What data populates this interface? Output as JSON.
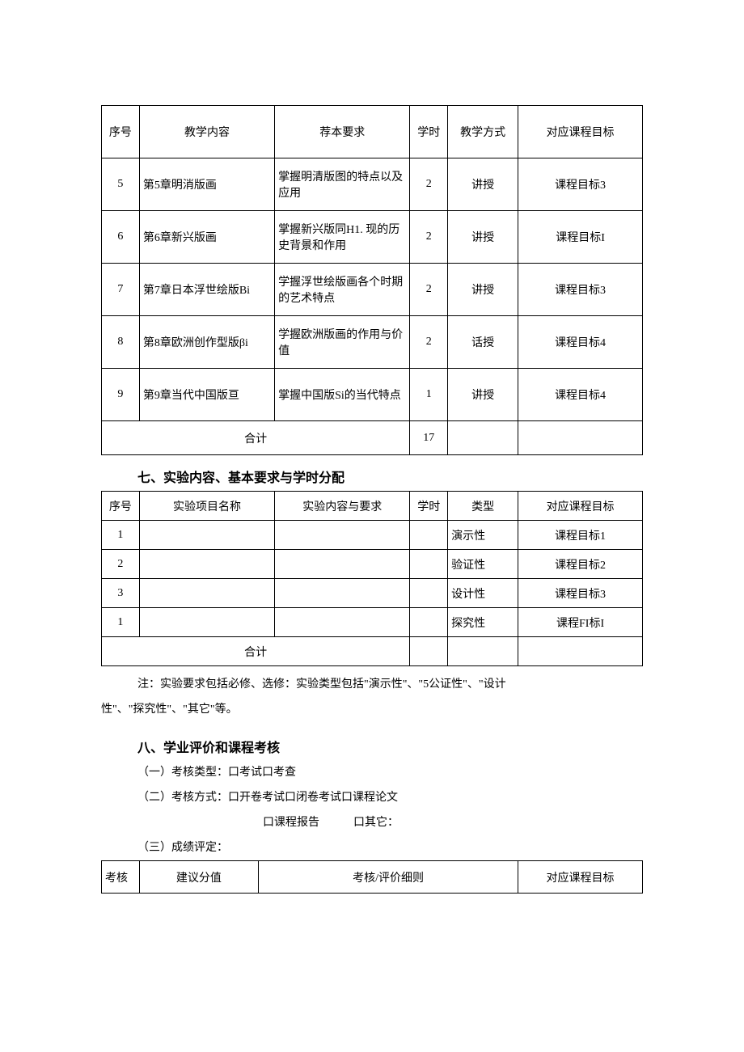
{
  "table1": {
    "headers": [
      "序号",
      "教学内容",
      "荐本要求",
      "学时",
      "教学方式",
      "对应课程目标"
    ],
    "rows": [
      [
        "5",
        "第5章明消版画",
        "掌握明清版图的特点以及应用",
        "2",
        "讲授",
        "课程目标3"
      ],
      [
        "6",
        "第6章新兴版画",
        "掌握新兴版同H1. 现的历史背景和作用",
        "2",
        "讲授",
        "课程目标I"
      ],
      [
        "7",
        "第7章日本浮世绘版Bi",
        "学握浮世绘版画各个时期的艺术特点",
        "2",
        "讲授",
        "课程目标3"
      ],
      [
        "8",
        "第8章欧洲创作型版βi",
        "学握欧洲版画的作用与价值",
        "2",
        "话授",
        "课程目标4"
      ],
      [
        "9",
        "第9章当代中国版亘",
        "掌握中国版Si的当代特点",
        "1",
        "讲授",
        "课程目标4"
      ]
    ],
    "total_label": "合计",
    "total_value": "17"
  },
  "section7_heading": "七、实验内容、基本要求与学时分配",
  "table2": {
    "headers": [
      "序号",
      "实验项目名称",
      "实验内容与要求",
      "学时",
      "类型",
      "对应课程目标"
    ],
    "rows": [
      [
        "1",
        "",
        "",
        "",
        "演示性",
        "课程目标1"
      ],
      [
        "2",
        "",
        "",
        "",
        "验证性",
        "课程目标2"
      ],
      [
        "3",
        "",
        "",
        "",
        "设计性",
        "课程目标3"
      ],
      [
        "1",
        "",
        "",
        "",
        "探究性",
        "课程FI标I"
      ]
    ],
    "total_label": "合计"
  },
  "note_line1": "注：实验要求包括必修、选修：实验类型包括\"演示性\"、\"5公证性\"、\"设计",
  "note_line2": "性\"、\"探究性\"、\"其它\"等。",
  "section8_heading": "八、学业评价和课程考核",
  "line_a": "（一）考核类型：口考试口考查",
  "line_b": "（二）考核方式：口开卷考试口闭卷考试口课程论文",
  "line_b2": "口课程报告　　　口其它：",
  "line_c": "（三）成绩评定：",
  "table3": {
    "headers": [
      "考核",
      "建议分值",
      "考核/评价细则",
      "对应课程目标"
    ]
  }
}
